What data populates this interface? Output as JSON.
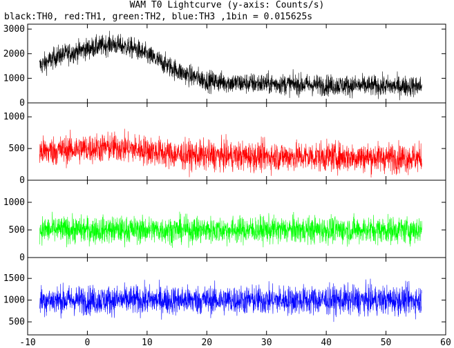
{
  "chart_data": {
    "type": "line",
    "title": "WAM T0 Lightcurve (y-axis: Counts/s)",
    "subtitle": "black:TH0, red:TH1, green:TH2, blue:TH3 ,1bin = 0.015625s",
    "xlim": [
      -10,
      60
    ],
    "x_ticks": [
      "-10",
      "0",
      "10",
      "20",
      "30",
      "40",
      "50",
      "60"
    ],
    "x_range": [
      -8,
      56
    ],
    "panels": [
      {
        "series": "TH0",
        "color": "#000000",
        "ylim": [
          0,
          3200
        ],
        "y_ticks": [
          0,
          1000,
          2000,
          3000
        ],
        "y_tick_labels": [
          "0",
          "1000",
          "2000",
          "3000"
        ],
        "profile": [
          [
            -8,
            1500
          ],
          [
            -5,
            1900
          ],
          [
            0,
            2200
          ],
          [
            4,
            2400
          ],
          [
            8,
            2200
          ],
          [
            12,
            1700
          ],
          [
            16,
            1200
          ],
          [
            20,
            900
          ],
          [
            25,
            800
          ],
          [
            30,
            780
          ],
          [
            35,
            750
          ],
          [
            40,
            720
          ],
          [
            45,
            700
          ],
          [
            50,
            680
          ],
          [
            56,
            680
          ]
        ],
        "noise": 420
      },
      {
        "series": "TH1",
        "color": "#ff0000",
        "ylim": [
          0,
          1220
        ],
        "y_ticks": [
          0,
          500,
          1000
        ],
        "y_tick_labels": [
          "0",
          "500",
          "1000"
        ],
        "profile": [
          [
            -8,
            450
          ],
          [
            0,
            500
          ],
          [
            5,
            520
          ],
          [
            10,
            470
          ],
          [
            15,
            400
          ],
          [
            25,
            380
          ],
          [
            40,
            370
          ],
          [
            56,
            350
          ]
        ],
        "noise": 230
      },
      {
        "series": "TH2",
        "color": "#00ff00",
        "ylim": [
          0,
          1400
        ],
        "y_ticks": [
          0,
          500,
          1000
        ],
        "y_tick_labels": [
          "0",
          "500",
          "1000"
        ],
        "profile": [
          [
            -8,
            500
          ],
          [
            20,
            500
          ],
          [
            56,
            500
          ]
        ],
        "noise": 240
      },
      {
        "series": "TH3",
        "color": "#0000ff",
        "ylim": [
          200,
          1980
        ],
        "y_ticks": [
          500,
          1000,
          1500
        ],
        "y_tick_labels": [
          "500",
          "1000",
          "1500"
        ],
        "profile": [
          [
            -8,
            1000
          ],
          [
            20,
            1000
          ],
          [
            56,
            1000
          ]
        ],
        "noise": 330
      }
    ]
  }
}
